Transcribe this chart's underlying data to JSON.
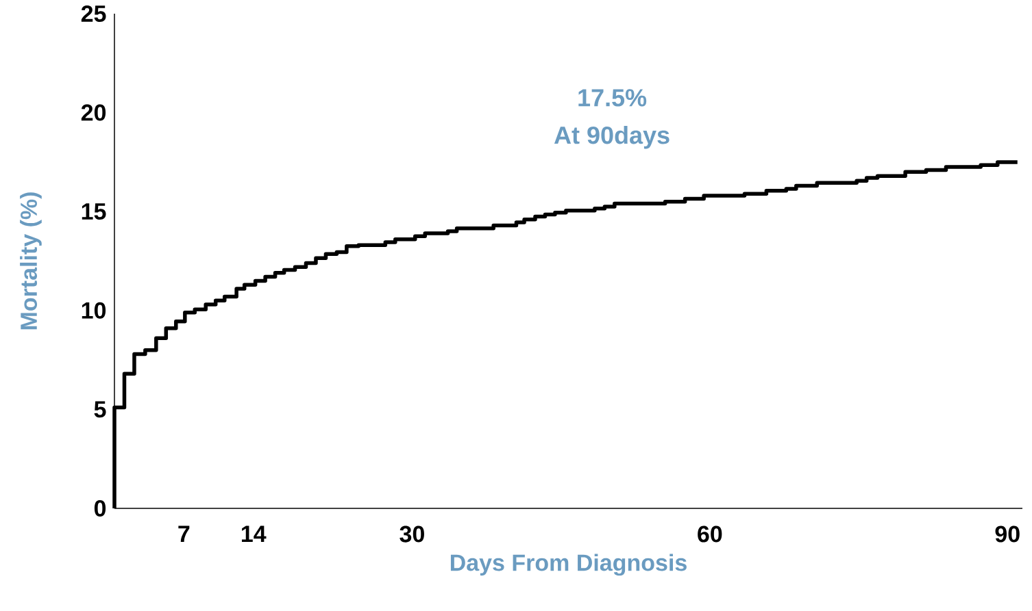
{
  "chart_data": {
    "type": "step",
    "xlabel": "Days From Diagnosis",
    "ylabel": "Mortality (%)",
    "annotations": [
      "17.5%",
      "At 90days"
    ],
    "x": [
      0,
      0,
      1.0,
      2.0,
      3.1,
      4.2,
      5.2,
      6.2,
      7.1,
      8.1,
      9.2,
      10.2,
      11.1,
      12.3,
      13.1,
      14.2,
      15.2,
      16.2,
      17.1,
      18.2,
      19.3,
      20.3,
      21.3,
      22.4,
      23.4,
      24.6,
      27.3,
      28.3,
      30.3,
      31.3,
      33.6,
      34.5,
      38.2,
      40.5,
      41.3,
      42.4,
      43.4,
      44.4,
      45.5,
      48.4,
      49.4,
      50.4,
      55.5,
      57.5,
      59.4,
      63.5,
      65.7,
      67.7,
      68.7,
      70.8,
      74.8,
      75.8,
      76.9,
      79.7,
      81.8,
      83.8,
      87.3,
      89.0,
      91.0
    ],
    "values": [
      0,
      5.1,
      6.8,
      7.8,
      8.0,
      8.6,
      9.1,
      9.45,
      9.9,
      10.05,
      10.3,
      10.5,
      10.7,
      11.1,
      11.3,
      11.5,
      11.7,
      11.9,
      12.05,
      12.2,
      12.4,
      12.65,
      12.85,
      12.95,
      13.25,
      13.3,
      13.45,
      13.6,
      13.75,
      13.9,
      14.0,
      14.15,
      14.3,
      14.45,
      14.6,
      14.75,
      14.85,
      14.95,
      15.05,
      15.15,
      15.25,
      15.4,
      15.5,
      15.65,
      15.8,
      15.9,
      16.05,
      16.15,
      16.3,
      16.45,
      16.55,
      16.7,
      16.8,
      17.0,
      17.1,
      17.25,
      17.35,
      17.5,
      17.5
    ],
    "color": "#000000",
    "xlim": [
      0,
      91.5
    ],
    "ylim": [
      0,
      25
    ],
    "xticks": [
      7,
      14,
      30,
      60,
      90
    ],
    "yticks": [
      0,
      5,
      10,
      15,
      20,
      25
    ],
    "grid": false,
    "marker": "none",
    "line_style": "solid"
  }
}
